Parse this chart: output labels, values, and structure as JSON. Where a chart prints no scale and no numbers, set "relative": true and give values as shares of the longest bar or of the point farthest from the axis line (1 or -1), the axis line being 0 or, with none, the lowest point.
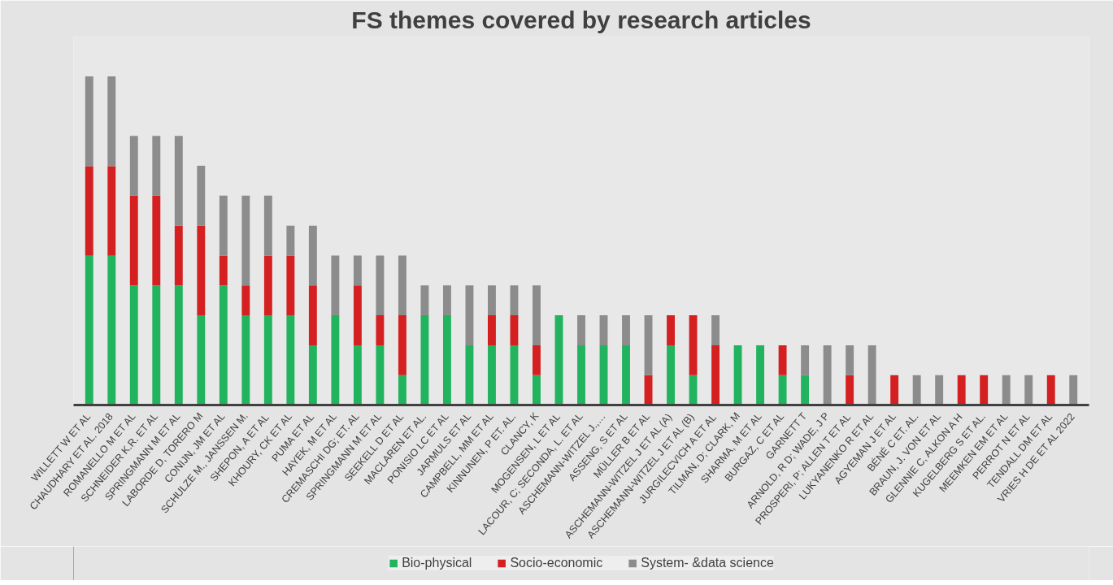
{
  "chart_data": {
    "type": "bar",
    "title": "FS themes covered by research articles",
    "relative": true,
    "stacked": true,
    "legend": "bottom",
    "categories": [
      "WILLETT W ET AL",
      "CHAUDHARY ET AL. 2018",
      "ROMANELLO M ET AL",
      "SCHNEIDER K.R. ET AL",
      "SPRINGMANN M ET AL",
      "LABORDE D, TORERO M",
      "CONIJN, JM ET AL",
      "SCHULZE M., JANSSEN M.",
      "SHEPON, A ET AL",
      "KHOURY, CK ET AL",
      "PUMA ET AL",
      "HAYEK, M ET AL",
      "CREMASCHI DG; ET. AL",
      "SPRINGMANN M ET AL",
      "SEEKELL D ET AL",
      "MACLAREN ET AL.",
      "PONISIO LC ET AL",
      "JARMULS ET AL",
      "CAMPBELL, MM ET AL",
      "KINNUNEN, P ET. AL.",
      "CLANCY, K",
      "MOGENSEN, L ET AL",
      "LACOUR, C; SECONDA, L. ET AL",
      "ASCHEMANN-WITZEL J.,…",
      "ASSENG, S ET AL",
      "MÜLLER B ET AL",
      "ASCHEMANN-WITZEL J ET AL (A)",
      "ASCHEMANN-WITZEL J ET AL (B)",
      "JURGILECVICH A ET AL",
      "TILMAN, D; CLARK, M",
      "SHARMA, M ET AL",
      "BURGAZ, C ET AL",
      "GARNETT T",
      "ARNOLD, R D; WADE, J P",
      "PROSPERI, P; ALLEN T ET AL",
      "LUKYANENKO R ET AL",
      "AGYEMAN J ET AL",
      "BÉNÉ C ET. AL.",
      "BRAUN, J. VON ET AL",
      "GLENNIE C, ALKON A H",
      "KUGELBERG S ET AL.",
      "MEEMKEN EM ET AL",
      "PERROT N ET AL",
      "TENDALL DM ET AL",
      "VRIES H DE ET AL 2022"
    ],
    "series": [
      {
        "name": "Bio-physical",
        "color": "#22b35e",
        "values": [
          0.454,
          0.454,
          0.364,
          0.364,
          0.364,
          0.273,
          0.364,
          0.273,
          0.273,
          0.273,
          0.182,
          0.273,
          0.182,
          0.182,
          0.091,
          0.273,
          0.273,
          0.182,
          0.182,
          0.182,
          0.091,
          0.273,
          0.182,
          0.182,
          0.182,
          0,
          0.182,
          0.091,
          0,
          0.182,
          0.182,
          0.091,
          0.091,
          0,
          0,
          0,
          0,
          0,
          0,
          0,
          0,
          0,
          0,
          0,
          0
        ]
      },
      {
        "name": "Socio-economic",
        "color": "#d42020",
        "values": [
          0.273,
          0.273,
          0.273,
          0.273,
          0.182,
          0.273,
          0.091,
          0.091,
          0.182,
          0.182,
          0.182,
          0,
          0.182,
          0.091,
          0.182,
          0,
          0,
          0,
          0.091,
          0.091,
          0.091,
          0,
          0,
          0,
          0,
          0.091,
          0.091,
          0.182,
          0.182,
          0,
          0,
          0.091,
          0,
          0,
          0.091,
          0,
          0.091,
          0,
          0,
          0.091,
          0.091,
          0,
          0,
          0.091,
          0
        ]
      },
      {
        "name": "System- &data science",
        "color": "#8c8c8c",
        "values": [
          0.273,
          0.273,
          0.182,
          0.182,
          0.273,
          0.182,
          0.182,
          0.273,
          0.182,
          0.091,
          0.182,
          0.182,
          0.091,
          0.182,
          0.182,
          0.091,
          0.091,
          0.182,
          0.091,
          0.091,
          0.182,
          0,
          0.091,
          0.091,
          0.091,
          0.182,
          0,
          0,
          0.091,
          0,
          0,
          0,
          0.091,
          0.182,
          0.091,
          0.182,
          0,
          0.091,
          0.091,
          0,
          0,
          0.091,
          0.091,
          0,
          0.091
        ]
      }
    ]
  }
}
